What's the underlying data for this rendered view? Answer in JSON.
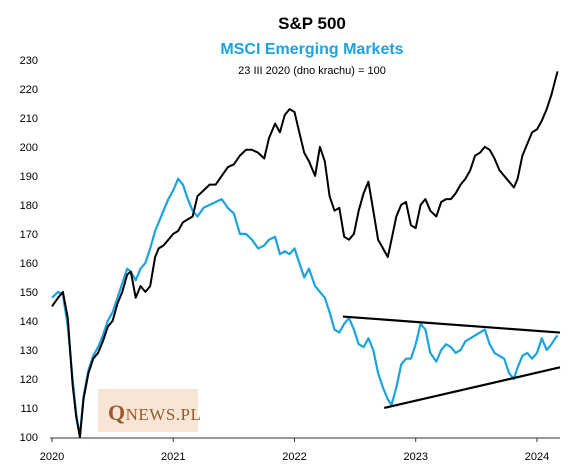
{
  "chart_data": {
    "type": "line",
    "title": "S&P 500",
    "subtitle": "MSCI Emerging Markets",
    "note": "23 III 2020 (dno krachu) = 100",
    "ylim": [
      100,
      232
    ],
    "yticks": [
      100,
      110,
      120,
      130,
      140,
      150,
      160,
      170,
      180,
      190,
      200,
      210,
      220,
      230
    ],
    "xlim": [
      2020.0,
      2024.19
    ],
    "xticks": [
      2020,
      2021,
      2022,
      2023,
      2024
    ],
    "grid": false,
    "colors": {
      "sp500": "#000000",
      "msci": "#1ba3e0",
      "trend": "#000000"
    },
    "series": [
      {
        "key": "sp500",
        "values": [
          [
            2020.0,
            145
          ],
          [
            2020.05,
            148
          ],
          [
            2020.09,
            150
          ],
          [
            2020.13,
            141
          ],
          [
            2020.17,
            118
          ],
          [
            2020.2,
            107
          ],
          [
            2020.23,
            100
          ],
          [
            2020.26,
            113
          ],
          [
            2020.3,
            122
          ],
          [
            2020.34,
            127
          ],
          [
            2020.38,
            129
          ],
          [
            2020.42,
            133
          ],
          [
            2020.46,
            138
          ],
          [
            2020.5,
            140
          ],
          [
            2020.54,
            146
          ],
          [
            2020.58,
            150
          ],
          [
            2020.62,
            156
          ],
          [
            2020.65,
            157
          ],
          [
            2020.69,
            148
          ],
          [
            2020.73,
            152
          ],
          [
            2020.77,
            150
          ],
          [
            2020.81,
            152
          ],
          [
            2020.85,
            162
          ],
          [
            2020.88,
            165
          ],
          [
            2020.92,
            166
          ],
          [
            2020.96,
            168
          ],
          [
            2021.0,
            170
          ],
          [
            2021.04,
            171
          ],
          [
            2021.08,
            174
          ],
          [
            2021.12,
            175
          ],
          [
            2021.16,
            176
          ],
          [
            2021.2,
            183
          ],
          [
            2021.25,
            185
          ],
          [
            2021.3,
            187
          ],
          [
            2021.35,
            187
          ],
          [
            2021.4,
            190
          ],
          [
            2021.45,
            193
          ],
          [
            2021.5,
            194
          ],
          [
            2021.55,
            197
          ],
          [
            2021.6,
            199
          ],
          [
            2021.65,
            199
          ],
          [
            2021.7,
            198
          ],
          [
            2021.75,
            196
          ],
          [
            2021.79,
            203
          ],
          [
            2021.84,
            208
          ],
          [
            2021.88,
            205
          ],
          [
            2021.92,
            211
          ],
          [
            2021.96,
            213
          ],
          [
            2022.0,
            212
          ],
          [
            2022.04,
            205
          ],
          [
            2022.08,
            198
          ],
          [
            2022.12,
            195
          ],
          [
            2022.17,
            190
          ],
          [
            2022.21,
            200
          ],
          [
            2022.25,
            195
          ],
          [
            2022.29,
            183
          ],
          [
            2022.33,
            178
          ],
          [
            2022.37,
            179
          ],
          [
            2022.41,
            169
          ],
          [
            2022.45,
            168
          ],
          [
            2022.49,
            170
          ],
          [
            2022.53,
            178
          ],
          [
            2022.57,
            184
          ],
          [
            2022.61,
            188
          ],
          [
            2022.65,
            178
          ],
          [
            2022.69,
            168
          ],
          [
            2022.73,
            165
          ],
          [
            2022.77,
            162
          ],
          [
            2022.8,
            168
          ],
          [
            2022.84,
            176
          ],
          [
            2022.88,
            180
          ],
          [
            2022.92,
            181
          ],
          [
            2022.96,
            173
          ],
          [
            2023.0,
            172
          ],
          [
            2023.04,
            180
          ],
          [
            2023.08,
            182
          ],
          [
            2023.12,
            178
          ],
          [
            2023.17,
            176
          ],
          [
            2023.21,
            181
          ],
          [
            2023.25,
            182
          ],
          [
            2023.29,
            182
          ],
          [
            2023.33,
            184
          ],
          [
            2023.37,
            187
          ],
          [
            2023.41,
            189
          ],
          [
            2023.45,
            192
          ],
          [
            2023.49,
            197
          ],
          [
            2023.53,
            198
          ],
          [
            2023.57,
            200
          ],
          [
            2023.61,
            199
          ],
          [
            2023.65,
            196
          ],
          [
            2023.69,
            192
          ],
          [
            2023.73,
            190
          ],
          [
            2023.77,
            188
          ],
          [
            2023.81,
            186
          ],
          [
            2023.84,
            189
          ],
          [
            2023.88,
            197
          ],
          [
            2023.92,
            201
          ],
          [
            2023.96,
            205
          ],
          [
            2024.0,
            206
          ],
          [
            2024.04,
            209
          ],
          [
            2024.08,
            213
          ],
          [
            2024.12,
            218
          ],
          [
            2024.15,
            223
          ],
          [
            2024.17,
            226
          ]
        ]
      },
      {
        "key": "msci",
        "values": [
          [
            2020.0,
            148
          ],
          [
            2020.05,
            150
          ],
          [
            2020.09,
            149
          ],
          [
            2020.13,
            138
          ],
          [
            2020.17,
            120
          ],
          [
            2020.2,
            108
          ],
          [
            2020.23,
            100
          ],
          [
            2020.26,
            114
          ],
          [
            2020.3,
            123
          ],
          [
            2020.34,
            128
          ],
          [
            2020.38,
            131
          ],
          [
            2020.42,
            135
          ],
          [
            2020.46,
            140
          ],
          [
            2020.5,
            143
          ],
          [
            2020.54,
            148
          ],
          [
            2020.58,
            153
          ],
          [
            2020.62,
            158
          ],
          [
            2020.65,
            157
          ],
          [
            2020.69,
            154
          ],
          [
            2020.73,
            158
          ],
          [
            2020.77,
            160
          ],
          [
            2020.81,
            165
          ],
          [
            2020.85,
            171
          ],
          [
            2020.88,
            174
          ],
          [
            2020.92,
            178
          ],
          [
            2020.96,
            182
          ],
          [
            2021.0,
            185
          ],
          [
            2021.04,
            189
          ],
          [
            2021.08,
            187
          ],
          [
            2021.12,
            182
          ],
          [
            2021.16,
            178
          ],
          [
            2021.2,
            176
          ],
          [
            2021.25,
            179
          ],
          [
            2021.3,
            180
          ],
          [
            2021.35,
            181
          ],
          [
            2021.4,
            182
          ],
          [
            2021.45,
            179
          ],
          [
            2021.5,
            177
          ],
          [
            2021.55,
            170
          ],
          [
            2021.6,
            170
          ],
          [
            2021.65,
            168
          ],
          [
            2021.7,
            165
          ],
          [
            2021.75,
            166
          ],
          [
            2021.79,
            168
          ],
          [
            2021.84,
            169
          ],
          [
            2021.88,
            163
          ],
          [
            2021.92,
            164
          ],
          [
            2021.96,
            163
          ],
          [
            2022.0,
            165
          ],
          [
            2022.04,
            160
          ],
          [
            2022.08,
            155
          ],
          [
            2022.12,
            158
          ],
          [
            2022.17,
            152
          ],
          [
            2022.21,
            150
          ],
          [
            2022.25,
            148
          ],
          [
            2022.29,
            143
          ],
          [
            2022.33,
            137
          ],
          [
            2022.37,
            136
          ],
          [
            2022.41,
            139
          ],
          [
            2022.45,
            141
          ],
          [
            2022.49,
            137
          ],
          [
            2022.53,
            132
          ],
          [
            2022.57,
            131
          ],
          [
            2022.61,
            134
          ],
          [
            2022.65,
            130
          ],
          [
            2022.69,
            122
          ],
          [
            2022.73,
            117
          ],
          [
            2022.77,
            113
          ],
          [
            2022.8,
            111
          ],
          [
            2022.84,
            117
          ],
          [
            2022.88,
            125
          ],
          [
            2022.92,
            127
          ],
          [
            2022.96,
            127
          ],
          [
            2023.0,
            132
          ],
          [
            2023.04,
            139
          ],
          [
            2023.08,
            137
          ],
          [
            2023.12,
            129
          ],
          [
            2023.17,
            126
          ],
          [
            2023.21,
            130
          ],
          [
            2023.25,
            132
          ],
          [
            2023.29,
            131
          ],
          [
            2023.33,
            129
          ],
          [
            2023.37,
            130
          ],
          [
            2023.41,
            133
          ],
          [
            2023.45,
            134
          ],
          [
            2023.49,
            135
          ],
          [
            2023.53,
            136
          ],
          [
            2023.57,
            137
          ],
          [
            2023.61,
            132
          ],
          [
            2023.65,
            129
          ],
          [
            2023.69,
            128
          ],
          [
            2023.73,
            127
          ],
          [
            2023.77,
            122
          ],
          [
            2023.81,
            120
          ],
          [
            2023.84,
            124
          ],
          [
            2023.88,
            128
          ],
          [
            2023.92,
            129
          ],
          [
            2023.96,
            127
          ],
          [
            2024.0,
            129
          ],
          [
            2024.04,
            134
          ],
          [
            2024.08,
            130
          ],
          [
            2024.12,
            132
          ],
          [
            2024.15,
            134
          ],
          [
            2024.17,
            135
          ]
        ]
      }
    ],
    "trendlines": [
      {
        "from": [
          2022.4,
          141.5
        ],
        "to": [
          2024.19,
          136.0
        ]
      },
      {
        "from": [
          2022.74,
          110.0
        ],
        "to": [
          2024.19,
          124.0
        ]
      }
    ],
    "logo": {
      "initial": "Q",
      "rest": "NEWS.PL"
    }
  }
}
